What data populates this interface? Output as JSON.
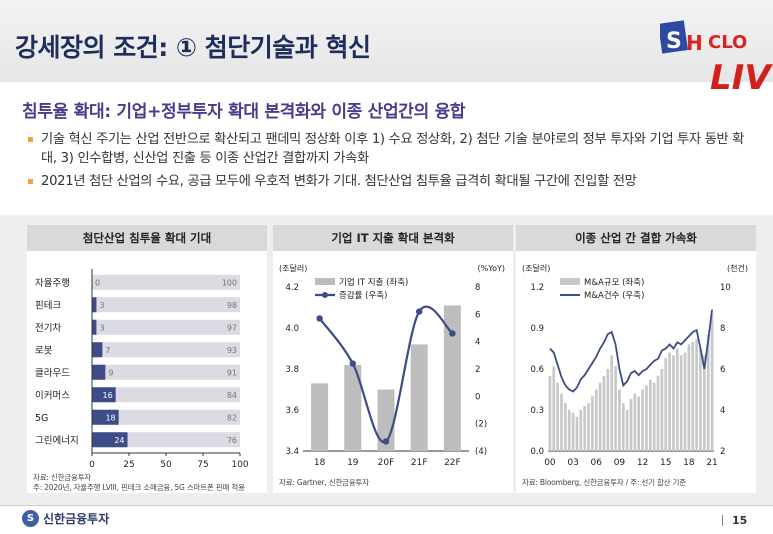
{
  "header": {
    "title": "강세장의 조건: ① 첨단기술과 혁신",
    "logo_text": "SHICLO LIVE"
  },
  "subtitle": "침투율 확대: 기업+정부투자 확대 본격화와 이종 산업간의 융합",
  "bullets": [
    "기술 혁신 주기는 산업 전반으로 확산되고 팬데믹 정상화 이후 1) 수요 정상화, 2) 첨단 기술 분야로의 정부 투자와 기업 투자 동반 확대, 3) 인수합병, 신산업 진출 등 이종 산업간 결합까지 가속화",
    "2021년 첨단 산업의 수요, 공급 모두에 우호적 변화가 기대. 첨단산업 침투율 급격히 확대될 구간에 진입할 전망"
  ],
  "footer": {
    "company": "신한금융투자",
    "page": "15"
  },
  "colors": {
    "navy": "#3d4b86",
    "bar_gray": "#bdbdbd",
    "light_gray": "#dadbe3"
  },
  "chart_data": [
    {
      "type": "bar",
      "title": "첨단산업 침투율 확대 기대",
      "categories": [
        "자율주행",
        "핀테크",
        "전기차",
        "로봇",
        "클라우드",
        "이커머스",
        "5G",
        "그린에너지"
      ],
      "values": [
        0,
        3,
        3,
        7,
        9,
        16,
        18,
        24
      ],
      "remaining": [
        100,
        98,
        97,
        93,
        91,
        84,
        82,
        76
      ],
      "xlim": [
        0,
        100
      ],
      "xticks": [
        "0",
        "25",
        "50",
        "75",
        "100"
      ],
      "source": "자료: 신한금융투자",
      "note": "주: 2020년, 자율주행 LVIII, 핀테크 소매금융, 5G 스마트폰 판매 적용"
    },
    {
      "type": "bar+line",
      "title": "기업 IT 지출 확대 본격화",
      "categories": [
        "18",
        "19",
        "20F",
        "21F",
        "22F"
      ],
      "series": [
        {
          "name": "기업 IT 지출 (좌축)",
          "values": [
            3.73,
            3.82,
            3.7,
            3.92,
            4.11
          ]
        },
        {
          "name": "증감률 (우축)",
          "values": [
            5.7,
            2.4,
            -3.3,
            6.2,
            4.6
          ]
        }
      ],
      "y_left_label": "(조달러)",
      "y_right_label": "(%YoY)",
      "ylim_left": [
        3.4,
        4.2
      ],
      "ylim_right": [
        -4,
        8
      ],
      "yticks_left": [
        "3.4",
        "3.6",
        "3.8",
        "4.0",
        "4.2"
      ],
      "yticks_right": [
        "(4)",
        "(2)",
        "0",
        "2",
        "4",
        "6",
        "8"
      ],
      "source": "자료: Gartner, 신한금융투자"
    },
    {
      "type": "bar+line",
      "title": "이종 산업 간 결합 가속화",
      "x_ticks": [
        "00",
        "03",
        "06",
        "09",
        "12",
        "15",
        "18",
        "21"
      ],
      "series": [
        {
          "name": "M&A규모 (좌축)",
          "values": [
            0.55,
            0.62,
            0.5,
            0.42,
            0.35,
            0.3,
            0.28,
            0.25,
            0.3,
            0.33,
            0.35,
            0.4,
            0.45,
            0.5,
            0.55,
            0.6,
            0.7,
            0.62,
            0.45,
            0.35,
            0.3,
            0.38,
            0.42,
            0.4,
            0.45,
            0.48,
            0.52,
            0.5,
            0.55,
            0.6,
            0.68,
            0.72,
            0.7,
            0.75,
            0.7,
            0.72,
            0.78,
            0.8,
            0.82,
            0.75,
            0.7,
            0.85,
            1.0
          ]
        },
        {
          "name": "M&A건수 (우축)",
          "values": [
            7.0,
            6.8,
            6.2,
            5.6,
            5.2,
            5.0,
            4.9,
            5.1,
            5.5,
            5.7,
            6.0,
            6.3,
            6.6,
            7.0,
            7.3,
            7.7,
            7.8,
            7.2,
            6.0,
            5.2,
            5.4,
            5.8,
            5.9,
            5.7,
            5.9,
            6.0,
            6.2,
            6.4,
            6.5,
            6.9,
            7.0,
            7.2,
            7.0,
            7.3,
            7.2,
            7.4,
            7.6,
            7.8,
            7.9,
            7.0,
            6.0,
            7.4,
            8.9
          ]
        }
      ],
      "y_left_label": "(조달러)",
      "y_right_label": "(천건)",
      "ylim_left": [
        0,
        1.2
      ],
      "ylim_right": [
        2,
        10
      ],
      "yticks_left": [
        "0.0",
        "0.3",
        "0.6",
        "0.9",
        "1.2"
      ],
      "yticks_right": [
        "2",
        "4",
        "6",
        "8",
        "10"
      ],
      "source": "자료: Bloomberg, 신한금융투자 / 주: 선기 합산 기준"
    }
  ]
}
